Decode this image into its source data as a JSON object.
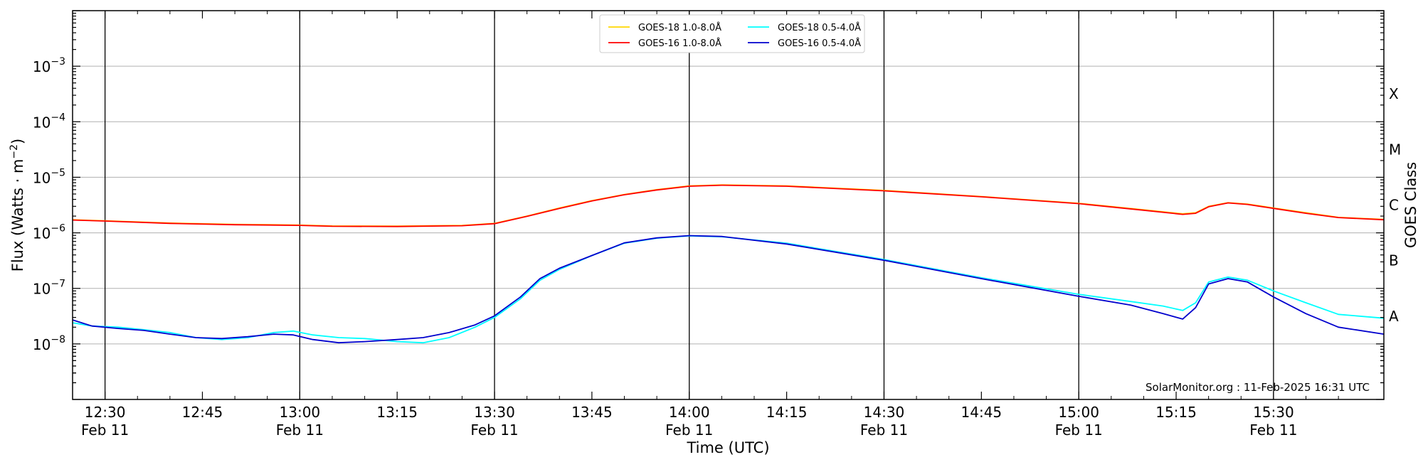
{
  "chart_data": {
    "type": "line",
    "xlabel": "Time (UTC)",
    "ylabel": "Flux (Watts · m",
    "ylabel_sup": "−2",
    "ylabel_end": ")",
    "right_label": "GOES Class",
    "y_scale": "log",
    "ylim": [
      1e-09,
      0.01
    ],
    "x_range": [
      "12:25",
      "15:47"
    ],
    "y_ticks": [
      {
        "value": 1e-08,
        "base": "10",
        "exp": "−8"
      },
      {
        "value": 1e-07,
        "base": "10",
        "exp": "−7"
      },
      {
        "value": 1e-06,
        "base": "10",
        "exp": "−6"
      },
      {
        "value": 1e-05,
        "base": "10",
        "exp": "−5"
      },
      {
        "value": 0.0001,
        "base": "10",
        "exp": "−4"
      },
      {
        "value": 0.001,
        "base": "10",
        "exp": "−3"
      }
    ],
    "x_ticks": [
      {
        "time": "12:30",
        "label": "12:30",
        "sub": "Feb 11"
      },
      {
        "time": "12:45",
        "label": "12:45",
        "sub": ""
      },
      {
        "time": "13:00",
        "label": "13:00",
        "sub": "Feb 11"
      },
      {
        "time": "13:15",
        "label": "13:15",
        "sub": ""
      },
      {
        "time": "13:30",
        "label": "13:30",
        "sub": "Feb 11"
      },
      {
        "time": "13:45",
        "label": "13:45",
        "sub": ""
      },
      {
        "time": "14:00",
        "label": "14:00",
        "sub": "Feb 11"
      },
      {
        "time": "14:15",
        "label": "14:15",
        "sub": ""
      },
      {
        "time": "14:30",
        "label": "14:30",
        "sub": "Feb 11"
      },
      {
        "time": "14:45",
        "label": "14:45",
        "sub": ""
      },
      {
        "time": "15:00",
        "label": "15:00",
        "sub": "Feb 11"
      },
      {
        "time": "15:15",
        "label": "15:15",
        "sub": ""
      },
      {
        "time": "15:30",
        "label": "15:30",
        "sub": "Feb 11"
      }
    ],
    "vertical_lines": [
      "12:30",
      "13:00",
      "13:30",
      "14:00",
      "14:30",
      "15:00",
      "15:30"
    ],
    "goes_classes": [
      {
        "label": "A",
        "value": 3.16e-08
      },
      {
        "label": "B",
        "value": 3.16e-07
      },
      {
        "label": "C",
        "value": 3.16e-06
      },
      {
        "label": "M",
        "value": 3.16e-05
      },
      {
        "label": "X",
        "value": 0.000316
      }
    ],
    "grid": "horizontal at decades",
    "legend_placement": "top-center",
    "credit": "SolarMonitor.org : 11-Feb-2025 16:31 UTC",
    "series": [
      {
        "name": "GOES-18 1.0-8.0Å",
        "color": "#ffd700",
        "points": [
          [
            "12:25",
            1.72e-06
          ],
          [
            "12:30",
            1.65e-06
          ],
          [
            "12:40",
            1.5e-06
          ],
          [
            "12:50",
            1.42e-06
          ],
          [
            "13:00",
            1.38e-06
          ],
          [
            "13:05",
            1.33e-06
          ],
          [
            "13:15",
            1.32e-06
          ],
          [
            "13:25",
            1.36e-06
          ],
          [
            "13:30",
            1.48e-06
          ],
          [
            "13:35",
            2e-06
          ],
          [
            "13:40",
            2.8e-06
          ],
          [
            "13:45",
            3.8e-06
          ],
          [
            "13:50",
            4.9e-06
          ],
          [
            "13:55",
            6e-06
          ],
          [
            "14:00",
            7e-06
          ],
          [
            "14:05",
            7.3e-06
          ],
          [
            "14:15",
            7e-06
          ],
          [
            "14:30",
            5.8e-06
          ],
          [
            "14:45",
            4.5e-06
          ],
          [
            "15:00",
            3.4e-06
          ],
          [
            "15:10",
            2.6e-06
          ],
          [
            "15:16",
            2.2e-06
          ],
          [
            "15:18",
            2.3e-06
          ],
          [
            "15:20",
            3e-06
          ],
          [
            "15:23",
            3.5e-06
          ],
          [
            "15:26",
            3.3e-06
          ],
          [
            "15:30",
            2.8e-06
          ],
          [
            "15:35",
            2.3e-06
          ],
          [
            "15:40",
            1.9e-06
          ],
          [
            "15:47",
            1.75e-06
          ]
        ]
      },
      {
        "name": "GOES-16 1.0-8.0Å",
        "color": "#ff0000",
        "points": [
          [
            "12:25",
            1.7e-06
          ],
          [
            "12:30",
            1.63e-06
          ],
          [
            "12:40",
            1.48e-06
          ],
          [
            "12:50",
            1.4e-06
          ],
          [
            "13:00",
            1.36e-06
          ],
          [
            "13:05",
            1.31e-06
          ],
          [
            "13:15",
            1.3e-06
          ],
          [
            "13:25",
            1.34e-06
          ],
          [
            "13:30",
            1.46e-06
          ],
          [
            "13:35",
            1.98e-06
          ],
          [
            "13:40",
            2.75e-06
          ],
          [
            "13:45",
            3.75e-06
          ],
          [
            "13:50",
            4.85e-06
          ],
          [
            "13:55",
            5.9e-06
          ],
          [
            "14:00",
            6.9e-06
          ],
          [
            "14:05",
            7.2e-06
          ],
          [
            "14:15",
            6.9e-06
          ],
          [
            "14:30",
            5.7e-06
          ],
          [
            "14:45",
            4.45e-06
          ],
          [
            "15:00",
            3.35e-06
          ],
          [
            "15:10",
            2.55e-06
          ],
          [
            "15:16",
            2.15e-06
          ],
          [
            "15:18",
            2.25e-06
          ],
          [
            "15:20",
            2.95e-06
          ],
          [
            "15:23",
            3.45e-06
          ],
          [
            "15:26",
            3.25e-06
          ],
          [
            "15:30",
            2.75e-06
          ],
          [
            "15:35",
            2.25e-06
          ],
          [
            "15:40",
            1.88e-06
          ],
          [
            "15:47",
            1.72e-06
          ]
        ]
      },
      {
        "name": "GOES-18 0.5-4.0Å",
        "color": "#00ffff",
        "points": [
          [
            "12:25",
            2.4e-08
          ],
          [
            "12:28",
            2.1e-08
          ],
          [
            "12:32",
            2e-08
          ],
          [
            "12:36",
            1.8e-08
          ],
          [
            "12:40",
            1.6e-08
          ],
          [
            "12:44",
            1.3e-08
          ],
          [
            "12:48",
            1.2e-08
          ],
          [
            "12:52",
            1.3e-08
          ],
          [
            "12:56",
            1.6e-08
          ],
          [
            "12:59",
            1.7e-08
          ],
          [
            "13:02",
            1.45e-08
          ],
          [
            "13:06",
            1.3e-08
          ],
          [
            "13:10",
            1.25e-08
          ],
          [
            "13:15",
            1.1e-08
          ],
          [
            "13:19",
            1.05e-08
          ],
          [
            "13:23",
            1.3e-08
          ],
          [
            "13:27",
            2e-08
          ],
          [
            "13:30",
            3e-08
          ],
          [
            "13:34",
            6.5e-08
          ],
          [
            "13:37",
            1.4e-07
          ],
          [
            "13:40",
            2.2e-07
          ],
          [
            "13:45",
            3.9e-07
          ],
          [
            "13:50",
            6.5e-07
          ],
          [
            "13:55",
            8e-07
          ],
          [
            "14:00",
            8.8e-07
          ],
          [
            "14:05",
            8.5e-07
          ],
          [
            "14:15",
            6.5e-07
          ],
          [
            "14:30",
            3.3e-07
          ],
          [
            "14:45",
            1.55e-07
          ],
          [
            "15:00",
            7.8e-08
          ],
          [
            "15:08",
            5.8e-08
          ],
          [
            "15:13",
            4.8e-08
          ],
          [
            "15:16",
            4e-08
          ],
          [
            "15:18",
            5.5e-08
          ],
          [
            "15:20",
            1.3e-07
          ],
          [
            "15:23",
            1.6e-07
          ],
          [
            "15:26",
            1.4e-07
          ],
          [
            "15:30",
            9e-08
          ],
          [
            "15:35",
            5.5e-08
          ],
          [
            "15:40",
            3.4e-08
          ],
          [
            "15:47",
            2.9e-08
          ]
        ]
      },
      {
        "name": "GOES-16 0.5-4.0Å",
        "color": "#0000cd",
        "points": [
          [
            "12:25",
            2.7e-08
          ],
          [
            "12:28",
            2.1e-08
          ],
          [
            "12:32",
            1.9e-08
          ],
          [
            "12:36",
            1.75e-08
          ],
          [
            "12:40",
            1.5e-08
          ],
          [
            "12:44",
            1.3e-08
          ],
          [
            "12:48",
            1.25e-08
          ],
          [
            "12:52",
            1.35e-08
          ],
          [
            "12:56",
            1.5e-08
          ],
          [
            "12:59",
            1.45e-08
          ],
          [
            "13:02",
            1.2e-08
          ],
          [
            "13:06",
            1.05e-08
          ],
          [
            "13:10",
            1.1e-08
          ],
          [
            "13:15",
            1.2e-08
          ],
          [
            "13:19",
            1.3e-08
          ],
          [
            "13:23",
            1.6e-08
          ],
          [
            "13:27",
            2.2e-08
          ],
          [
            "13:30",
            3.2e-08
          ],
          [
            "13:34",
            7e-08
          ],
          [
            "13:37",
            1.5e-07
          ],
          [
            "13:40",
            2.3e-07
          ],
          [
            "13:45",
            3.9e-07
          ],
          [
            "13:50",
            6.6e-07
          ],
          [
            "13:55",
            8.1e-07
          ],
          [
            "14:00",
            8.9e-07
          ],
          [
            "14:05",
            8.6e-07
          ],
          [
            "14:15",
            6.3e-07
          ],
          [
            "14:30",
            3.2e-07
          ],
          [
            "14:45",
            1.5e-07
          ],
          [
            "15:00",
            7.2e-08
          ],
          [
            "15:08",
            5e-08
          ],
          [
            "15:13",
            3.5e-08
          ],
          [
            "15:16",
            2.8e-08
          ],
          [
            "15:18",
            4.5e-08
          ],
          [
            "15:20",
            1.2e-07
          ],
          [
            "15:23",
            1.5e-07
          ],
          [
            "15:26",
            1.3e-07
          ],
          [
            "15:30",
            7e-08
          ],
          [
            "15:35",
            3.5e-08
          ],
          [
            "15:40",
            2e-08
          ],
          [
            "15:47",
            1.5e-08
          ]
        ]
      }
    ]
  }
}
